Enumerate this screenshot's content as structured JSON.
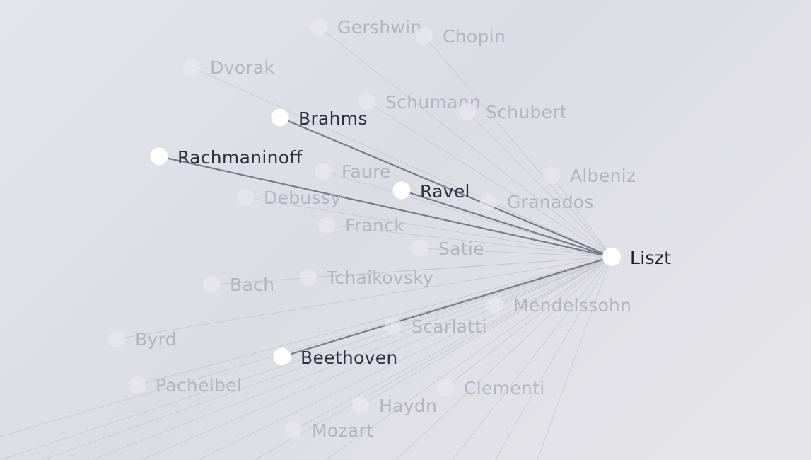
{
  "graph": {
    "center": {
      "name": "Liszt"
    },
    "highlighted": [
      {
        "name": "Brahms"
      },
      {
        "name": "Rachmaninoff"
      },
      {
        "name": "Ravel"
      },
      {
        "name": "Beethoven"
      }
    ],
    "faded": [
      {
        "name": "Gershwin"
      },
      {
        "name": "Chopin"
      },
      {
        "name": "Dvorak"
      },
      {
        "name": "Schumann"
      },
      {
        "name": "Schubert"
      },
      {
        "name": "Faure"
      },
      {
        "name": "Albeniz"
      },
      {
        "name": "Debussy"
      },
      {
        "name": "Granados"
      },
      {
        "name": "Franck"
      },
      {
        "name": "Satie"
      },
      {
        "name": "Bach"
      },
      {
        "name": "Tchaikovsky"
      },
      {
        "name": "Mendelssohn"
      },
      {
        "name": "Scarlatti"
      },
      {
        "name": "Byrd"
      },
      {
        "name": "Pachelbel"
      },
      {
        "name": "Clementi"
      },
      {
        "name": "Haydn"
      },
      {
        "name": "Mozart"
      }
    ]
  },
  "colors": {
    "center_text": "#1f1f2e",
    "highlight_text": "#2e2e3e",
    "faded_text": "#b4b4c2",
    "highlight_edge": "#7a7a88",
    "faded_edge": "#c6c6d0",
    "node_fill": "#ffffff",
    "faded_node_fill": "#e8e8ee"
  }
}
